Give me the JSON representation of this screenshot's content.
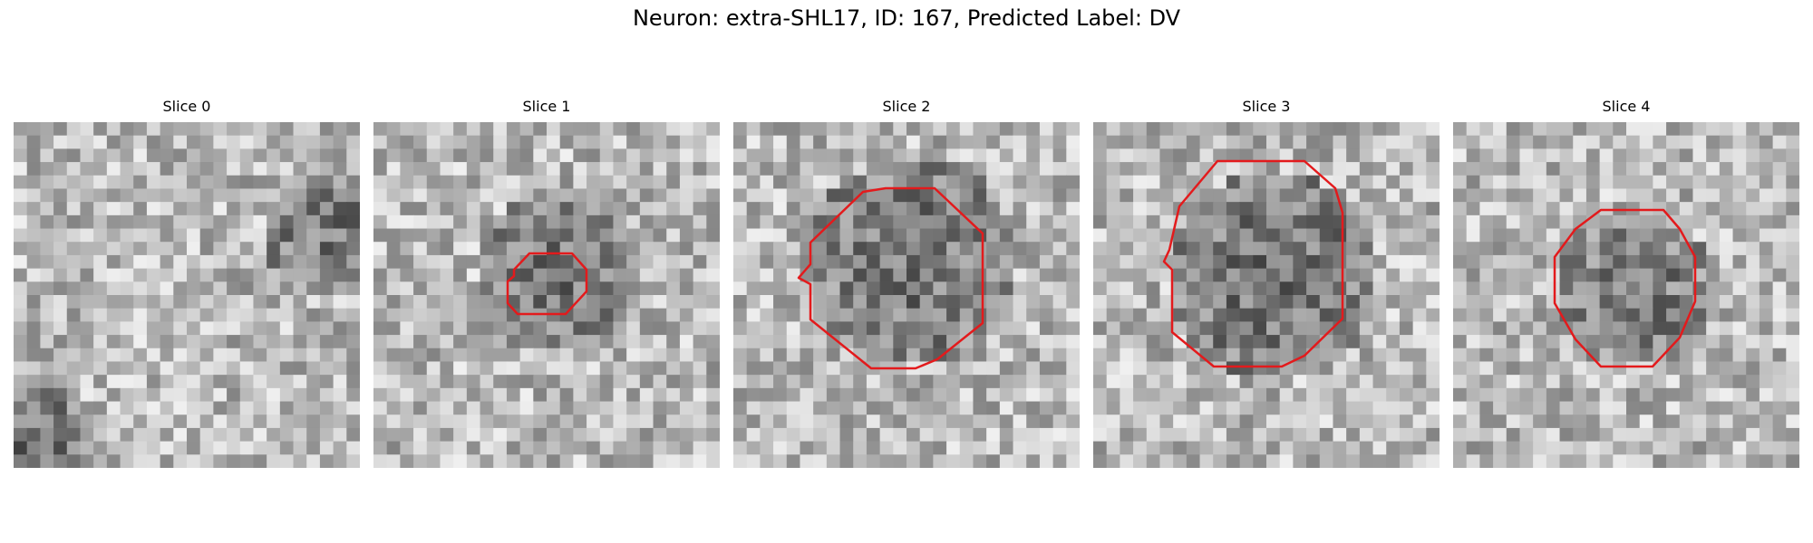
{
  "figure": {
    "title": "Neuron: extra-SHL17, ID: 167, Predicted Label: DV"
  },
  "slices": [
    {
      "title": "Slice 0",
      "seed": 11,
      "has_contour": false
    },
    {
      "title": "Slice 1",
      "seed": 23,
      "has_contour": true
    },
    {
      "title": "Slice 2",
      "seed": 37,
      "has_contour": true
    },
    {
      "title": "Slice 3",
      "seed": 49,
      "has_contour": true
    },
    {
      "title": "Slice 4",
      "seed": 61,
      "has_contour": true
    }
  ],
  "colors": {
    "contour": "#e31a1c"
  },
  "icons": {
    "contour": "red-segmentation-contour"
  }
}
